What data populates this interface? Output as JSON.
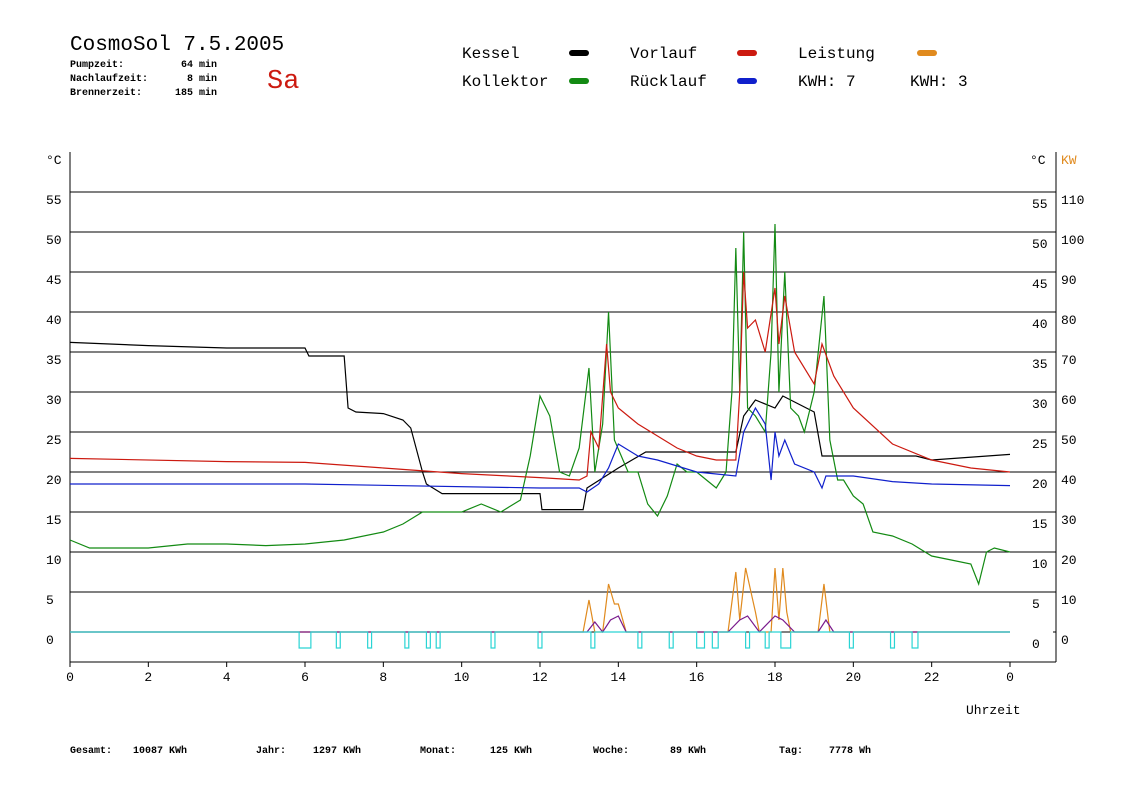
{
  "header": {
    "title": "CosmoSol 7.5.2005",
    "day": "Sa",
    "stats": [
      {
        "label": "Pumpzeit:",
        "value": "64 min"
      },
      {
        "label": "Nachlaufzeit:",
        "value": "8 min"
      },
      {
        "label": "Brennerzeit:",
        "value": "185 min"
      }
    ]
  },
  "footer": [
    {
      "label": "Gesamt:",
      "value": "10087 KWh"
    },
    {
      "label": "Jahr:",
      "value": "1297 KWh"
    },
    {
      "label": "Monat:",
      "value": "125 KWh"
    },
    {
      "label": "Woche:",
      "value": "89 KWh"
    },
    {
      "label": "Tag:",
      "value": "7778 Wh"
    }
  ],
  "chart_data": {
    "type": "line",
    "y_label": "°C",
    "y2_label_unit": "°C",
    "y2_label": "KW",
    "x_label": "Uhrzeit",
    "xlim": [
      0,
      24
    ],
    "xticks": [
      0,
      2,
      4,
      6,
      8,
      10,
      12,
      14,
      16,
      18,
      20,
      22,
      {
        "value": 24,
        "label": "0"
      }
    ],
    "ylim": [
      -3.75,
      60
    ],
    "yticks": [
      0,
      5,
      10,
      15,
      20,
      25,
      30,
      35,
      40,
      45,
      50,
      55
    ],
    "y2lim": [
      -7.5,
      120
    ],
    "y2ticks": [
      0,
      10,
      20,
      30,
      40,
      50,
      60,
      70,
      80,
      90,
      100,
      110
    ],
    "y2_color": "#e08a1e",
    "grid": true,
    "kwh_labels": [
      "KWH: 7",
      "KWH: 3"
    ],
    "series": [
      {
        "name": "Kessel",
        "color": "#000000",
        "x": [
          0,
          2,
          4,
          6,
          6.1,
          7,
          7.1,
          7.3,
          8,
          8.5,
          8.7,
          9,
          9.1,
          9.5,
          12,
          12.05,
          13.1,
          13.2,
          14,
          14.7,
          17,
          17.2,
          17.5,
          18,
          18.2,
          19,
          19.2,
          20,
          21.6,
          22,
          24
        ],
        "values": [
          36.2,
          35.8,
          35.5,
          35.5,
          34.5,
          34.5,
          28,
          27.5,
          27.3,
          26.5,
          25.5,
          20,
          18.5,
          17.3,
          17.3,
          15.3,
          15.3,
          18,
          20.5,
          22.5,
          22.5,
          27,
          29,
          28,
          29.5,
          27.5,
          22,
          22,
          22,
          21.5,
          22.2
        ]
      },
      {
        "name": "Kollektor",
        "color": "#138a13",
        "x": [
          0,
          0.5,
          1,
          2,
          3,
          4,
          5,
          6,
          7,
          8,
          8.5,
          9,
          9.5,
          10,
          10.5,
          11,
          11.5,
          11.75,
          12,
          12.25,
          12.5,
          12.75,
          13,
          13.25,
          13.4,
          13.6,
          13.75,
          13.9,
          14.25,
          14.5,
          14.75,
          15,
          15.25,
          15.5,
          15.75,
          16,
          16.25,
          16.5,
          16.75,
          16.9,
          17,
          17.1,
          17.2,
          17.3,
          17.5,
          17.75,
          17.9,
          18,
          18.1,
          18.25,
          18.4,
          18.6,
          18.75,
          19,
          19.25,
          19.4,
          19.6,
          19.75,
          20,
          20.25,
          20.5,
          21,
          21.5,
          22,
          22.5,
          23,
          23.2,
          23.4,
          23.6,
          24
        ],
        "values": [
          11.5,
          10.5,
          10.5,
          10.5,
          11,
          11,
          10.8,
          11,
          11.5,
          12.5,
          13.5,
          15,
          15,
          15,
          16,
          15,
          16.5,
          22,
          29.5,
          27,
          20,
          19.5,
          23,
          33,
          20,
          26,
          40,
          24,
          20,
          20,
          16,
          14.5,
          17,
          21,
          20,
          20,
          19,
          18,
          20,
          30,
          48,
          30,
          50,
          28,
          27,
          25,
          35,
          51,
          30,
          45,
          28,
          27,
          25,
          30,
          42,
          24,
          19,
          19,
          17,
          16,
          12.5,
          12,
          11,
          9.5,
          9,
          8.5,
          6,
          10,
          10.5,
          10
        ]
      },
      {
        "name": "Vorlauf",
        "color": "#cc1a10",
        "x": [
          0,
          4,
          6,
          8,
          10,
          12,
          13,
          13.2,
          13.3,
          13.5,
          13.7,
          13.8,
          14,
          14.5,
          15,
          15.5,
          16,
          16.5,
          17,
          17.1,
          17.2,
          17.3,
          17.5,
          17.75,
          18,
          18.1,
          18.25,
          18.5,
          19,
          19.2,
          19.5,
          20,
          21,
          22,
          23,
          24
        ],
        "values": [
          21.7,
          21.3,
          21.2,
          20.5,
          19.8,
          19.3,
          19,
          19.5,
          25,
          23,
          36,
          30,
          28,
          26,
          24.5,
          23,
          22,
          21.5,
          21.5,
          30,
          45,
          38,
          39,
          35,
          43,
          36,
          42,
          35,
          31,
          36,
          32,
          28,
          23.5,
          21.5,
          20.5,
          20
        ]
      },
      {
        "name": "Rücklauf",
        "color": "#1020cc",
        "x": [
          0,
          6,
          12,
          13,
          13.2,
          13.5,
          13.75,
          14,
          14.5,
          15,
          16,
          17,
          17.2,
          17.5,
          17.75,
          17.9,
          18,
          18.1,
          18.25,
          18.5,
          19,
          19.2,
          19.3,
          20,
          21,
          22,
          24
        ],
        "values": [
          18.5,
          18.5,
          18,
          18,
          17.5,
          18.5,
          20.5,
          23.5,
          22,
          21.5,
          20,
          19.5,
          25,
          28,
          26,
          19,
          25,
          22,
          24,
          21,
          20,
          18,
          19.5,
          19.5,
          18.8,
          18.5,
          18.3
        ]
      },
      {
        "name": "Leistung",
        "color": "#e08a1e",
        "axis": "y2",
        "x": [
          0,
          13.1,
          13.25,
          13.4,
          13.6,
          13.75,
          13.9,
          14,
          14.2,
          16.8,
          17,
          17.1,
          17.25,
          17.5,
          17.6,
          17.9,
          18,
          18.1,
          18.2,
          18.3,
          18.4,
          19.1,
          19.25,
          19.4,
          24
        ],
        "values": [
          0,
          0,
          8,
          0,
          0,
          12,
          7,
          7,
          0,
          0,
          15,
          3,
          16,
          5,
          0,
          0,
          16,
          3,
          16,
          5,
          0,
          0,
          12,
          0,
          0
        ]
      },
      {
        "color": "#7a1a8c",
        "axis": "y2",
        "x": [
          0,
          13.2,
          13.4,
          13.6,
          13.8,
          14,
          14.2,
          16.8,
          17.1,
          17.3,
          17.6,
          18,
          18.2,
          18.5,
          19.1,
          19.3,
          19.5,
          24
        ],
        "values": [
          0,
          0,
          2.5,
          0,
          3,
          4,
          0,
          0,
          3,
          4,
          0,
          4,
          3,
          0,
          0,
          3,
          0,
          0
        ]
      },
      {
        "color": "#2ad4d4",
        "step": true,
        "x": [
          0,
          5.85,
          6.15,
          6.8,
          6.9,
          7.6,
          7.7,
          8.55,
          8.65,
          9.1,
          9.2,
          9.35,
          9.45,
          10.75,
          10.85,
          11.95,
          12.05,
          13.3,
          13.4,
          14.5,
          14.6,
          15.3,
          15.4,
          16,
          16.2,
          16.4,
          16.55,
          17.25,
          17.35,
          17.75,
          17.85,
          18.15,
          18.4,
          19.9,
          20,
          20.95,
          21.05,
          21.5,
          21.65,
          24
        ],
        "values": [
          0,
          -2,
          0,
          -2,
          0,
          -2,
          0,
          -2,
          0,
          -2,
          0,
          -2,
          0,
          -2,
          0,
          -2,
          0,
          -2,
          0,
          -2,
          0,
          -2,
          0,
          -2,
          0,
          -2,
          0,
          -2,
          0,
          -2,
          0,
          -2,
          0,
          -2,
          0,
          -2,
          0,
          -2,
          0,
          0
        ]
      }
    ]
  }
}
